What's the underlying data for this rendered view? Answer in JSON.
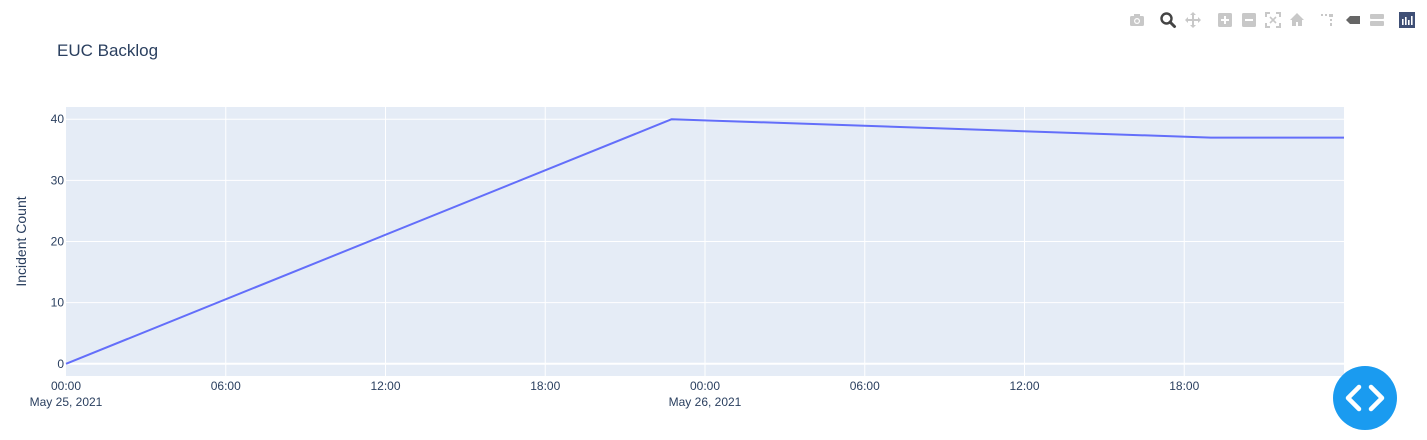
{
  "chart_data": {
    "type": "line",
    "title": "EUC Backlog",
    "xlabel": "",
    "ylabel": "Incident Count",
    "x": [
      "2021-05-25 00:00",
      "2021-05-25 22:45",
      "2021-05-26 19:00",
      "2021-05-27 00:00"
    ],
    "series": [
      {
        "values": [
          0,
          40,
          37,
          37
        ],
        "color": "#636efa"
      }
    ],
    "xlim": [
      "2021-05-25 00:00",
      "2021-05-27 00:00"
    ],
    "ylim": [
      -2,
      42
    ],
    "yticks": [
      0,
      10,
      20,
      30,
      40
    ],
    "xticks": [
      {
        "at": "2021-05-25 00:00",
        "label": "00:00",
        "sublabel": "May 25, 2021"
      },
      {
        "at": "2021-05-25 06:00",
        "label": "06:00",
        "sublabel": ""
      },
      {
        "at": "2021-05-25 12:00",
        "label": "12:00",
        "sublabel": ""
      },
      {
        "at": "2021-05-25 18:00",
        "label": "18:00",
        "sublabel": ""
      },
      {
        "at": "2021-05-26 00:00",
        "label": "00:00",
        "sublabel": "May 26, 2021"
      },
      {
        "at": "2021-05-26 06:00",
        "label": "06:00",
        "sublabel": ""
      },
      {
        "at": "2021-05-26 12:00",
        "label": "12:00",
        "sublabel": ""
      },
      {
        "at": "2021-05-26 18:00",
        "label": "18:00",
        "sublabel": ""
      }
    ],
    "grid": true,
    "plot_background": "#e5ecf6"
  },
  "modebar": {
    "icons": [
      "camera-icon",
      "zoom-icon",
      "pan-icon",
      "zoom-in-icon",
      "zoom-out-icon",
      "autoscale-icon",
      "home-icon",
      "spike-lines-icon",
      "hover-closest-icon",
      "hover-compare-icon",
      "plotly-logo-icon"
    ]
  },
  "fab": {
    "icon": "code-brackets-icon",
    "color": "#1a9bf0"
  }
}
